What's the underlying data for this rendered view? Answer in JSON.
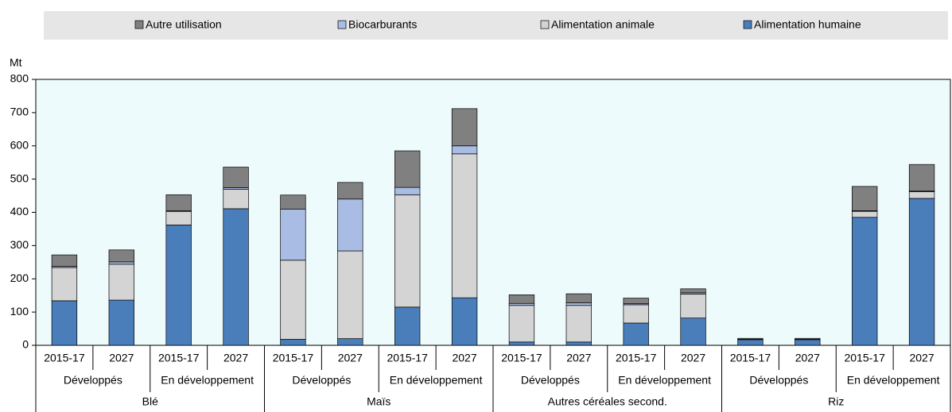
{
  "chart_data": {
    "type": "stacked-bar",
    "y_label": "Mt",
    "categories": [
      "2015-17",
      "2027",
      "2015-17",
      "2027",
      "2015-17",
      "2027",
      "2015-17",
      "2027",
      "2015-17",
      "2027",
      "2015-17",
      "2027",
      "2015-17",
      "2027",
      "2015-17",
      "2027"
    ],
    "subgroups": [
      "Développés",
      "En développement",
      "Développés",
      "En développement",
      "Développés",
      "En développement",
      "Développés",
      "En développement"
    ],
    "groups": [
      "Blé",
      "Maïs",
      "Autres céréales second.",
      "Riz"
    ],
    "series": [
      {
        "name": "Alimentation humaine",
        "color": "#4a7ebb",
        "values": [
          134,
          136,
          362,
          411,
          18,
          20,
          115,
          143,
          10,
          10,
          67,
          82,
          17,
          17,
          385,
          442
        ]
      },
      {
        "name": "Alimentation animale",
        "color": "#d4d4d4",
        "values": [
          100,
          108,
          40,
          58,
          238,
          264,
          338,
          433,
          110,
          110,
          55,
          72,
          1,
          1,
          18,
          20
        ]
      },
      {
        "name": "Biocarburants",
        "color": "#a9bce3",
        "values": [
          4,
          7,
          3,
          5,
          154,
          156,
          22,
          24,
          6,
          8,
          3,
          4,
          0,
          0,
          2,
          2
        ]
      },
      {
        "name": "Autre utilisation",
        "color": "#808080",
        "values": [
          34,
          36,
          48,
          62,
          42,
          50,
          110,
          112,
          26,
          27,
          17,
          12,
          3,
          3,
          73,
          80
        ]
      }
    ],
    "ylim": [
      0,
      800
    ],
    "yticks": [
      0,
      100,
      200,
      300,
      400,
      500,
      600,
      700,
      800
    ]
  }
}
